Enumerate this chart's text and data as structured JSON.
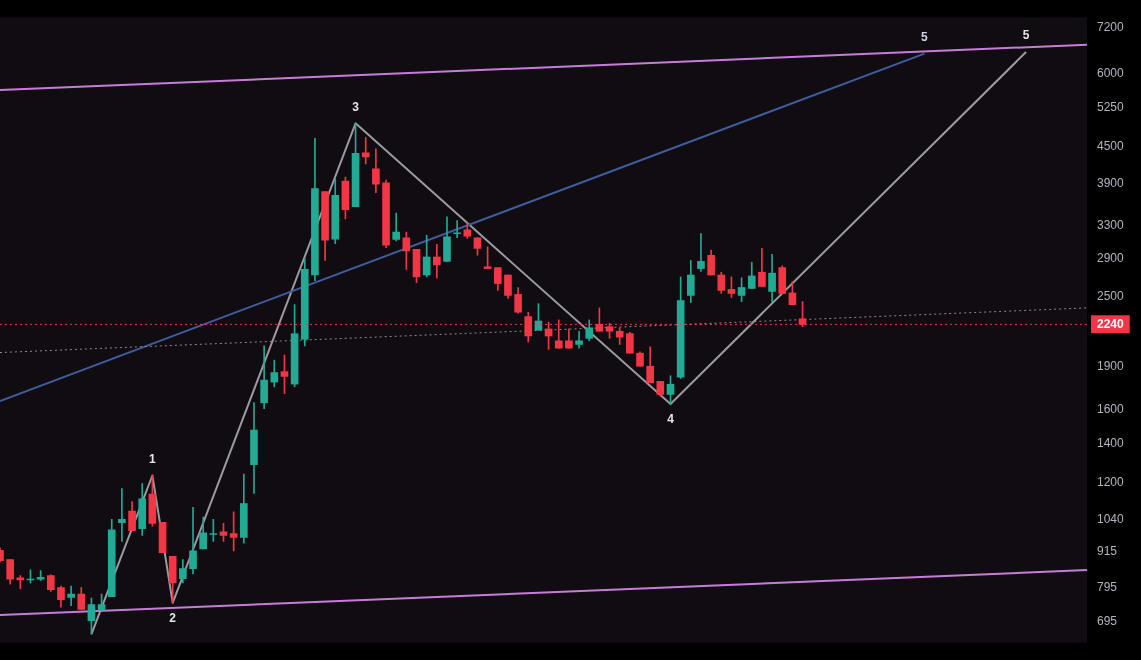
{
  "chart_data": {
    "type": "candlestick",
    "log": true,
    "legend": false,
    "tick_labels": "y",
    "annotations": [
      {
        "text": "1",
        "y": 1236
      },
      {
        "text": "2",
        "y": 749
      },
      {
        "text": "3",
        "y": 4940
      },
      {
        "text": "4",
        "y": 1637
      },
      {
        "text": "5",
        "y": 6540
      },
      {
        "text": "5",
        "y": 6500
      }
    ],
    "categories": [
      null,
      null,
      null,
      null,
      null,
      null,
      null,
      null,
      null,
      null,
      null,
      null,
      null,
      null,
      null,
      null,
      null,
      null,
      null,
      null,
      null,
      null,
      null,
      null,
      null,
      null,
      null,
      null,
      null,
      null,
      null,
      null,
      null,
      null,
      null,
      null,
      null,
      null,
      null,
      null,
      null,
      null,
      null,
      null,
      null,
      null,
      null,
      null,
      null,
      null,
      null,
      null,
      null,
      null,
      null,
      null,
      null,
      null,
      null,
      null,
      null,
      null,
      null,
      null,
      null,
      null,
      null,
      null,
      null,
      null,
      null,
      null,
      null,
      null,
      null,
      null,
      null,
      null,
      null,
      null,
      null,
      null,
      null,
      null,
      null,
      null,
      null,
      null,
      null,
      null,
      null,
      null,
      null,
      null,
      null,
      null,
      null,
      null,
      null,
      null,
      null,
      null,
      null,
      null,
      null,
      null,
      null,
      null
    ],
    "ohlc": [
      [
        921,
        930,
        880,
        884
      ],
      [
        888,
        888,
        806,
        822
      ],
      [
        826,
        834,
        792,
        820
      ],
      [
        820,
        853,
        810,
        822
      ],
      [
        822,
        850,
        818,
        828
      ],
      [
        834,
        836,
        783,
        789
      ],
      [
        795,
        800,
        736,
        758
      ],
      [
        765,
        800,
        741,
        775
      ],
      [
        775,
        795,
        730,
        730
      ],
      [
        698,
        763,
        662,
        744
      ],
      [
        728,
        775,
        728,
        744
      ],
      [
        767,
        1040,
        767,
        998
      ],
      [
        1027,
        1174,
        954,
        1040
      ],
      [
        1075,
        1116,
        995,
        995
      ],
      [
        1003,
        1198,
        976,
        1128
      ],
      [
        1149,
        1236,
        1013,
        1024
      ],
      [
        1028,
        1028,
        912,
        912
      ],
      [
        899,
        899,
        749,
        810
      ],
      [
        824,
        888,
        810,
        857
      ],
      [
        857,
        1091,
        839,
        919
      ],
      [
        926,
        1050,
        926,
        986
      ],
      [
        980,
        1040,
        954,
        984
      ],
      [
        990,
        1024,
        954,
        976
      ],
      [
        984,
        1071,
        919,
        969
      ],
      [
        969,
        1243,
        947,
        1107
      ],
      [
        1290,
        1646,
        1152,
        1478
      ],
      [
        1645,
        2058,
        1608,
        1799
      ],
      [
        1785,
        1946,
        1752,
        1853
      ],
      [
        1860,
        1985,
        1706,
        1825
      ],
      [
        1771,
        2421,
        1752,
        2159
      ],
      [
        2112,
        2908,
        2058,
        2782
      ],
      [
        2721,
        4655,
        2660,
        3821
      ],
      [
        3778,
        3778,
        2880,
        3120
      ],
      [
        3133,
        3966,
        3078,
        3722
      ],
      [
        3937,
        4000,
        3390,
        3516
      ],
      [
        3560,
        4940,
        3560,
        4390
      ],
      [
        4400,
        4670,
        4210,
        4330
      ],
      [
        4130,
        4470,
        3760,
        3890
      ],
      [
        3908,
        3950,
        3030,
        3060
      ],
      [
        3130,
        3470,
        3110,
        3220
      ],
      [
        3150,
        3220,
        2780,
        2990
      ],
      [
        3010,
        3010,
        2640,
        2700
      ],
      [
        2720,
        3180,
        2700,
        2920
      ],
      [
        2920,
        3070,
        2690,
        2830
      ],
      [
        2870,
        3420,
        2870,
        3160
      ],
      [
        3200,
        3370,
        3150,
        3210
      ],
      [
        3250,
        3340,
        3140,
        3170
      ],
      [
        3150,
        3150,
        2940,
        3020
      ],
      [
        2810,
        3040,
        2790,
        2790
      ],
      [
        2800,
        2800,
        2560,
        2630
      ],
      [
        2720,
        2720,
        2480,
        2510
      ],
      [
        2520,
        2590,
        2340,
        2350
      ],
      [
        2310,
        2350,
        2090,
        2140
      ],
      [
        2190,
        2430,
        2190,
        2270
      ],
      [
        2200,
        2260,
        2030,
        2140
      ],
      [
        2100,
        2280,
        2040,
        2040
      ],
      [
        2100,
        2200,
        2040,
        2040
      ],
      [
        2070,
        2180,
        2040,
        2100
      ],
      [
        2120,
        2280,
        2100,
        2210
      ],
      [
        2240,
        2390,
        2180,
        2180
      ],
      [
        2220,
        2250,
        2120,
        2180
      ],
      [
        2180,
        2210,
        2070,
        2130
      ],
      [
        2160,
        2170,
        2000,
        2000
      ],
      [
        2000,
        2010,
        1900,
        1900
      ],
      [
        1900,
        2050,
        1780,
        1780
      ],
      [
        1790,
        1790,
        1690,
        1700
      ],
      [
        1700,
        1830,
        1637,
        1770
      ],
      [
        1820,
        2700,
        1810,
        2460
      ],
      [
        2510,
        2880,
        2440,
        2720
      ],
      [
        2790,
        3200,
        2760,
        2870
      ],
      [
        2940,
        3000,
        2720,
        2720
      ],
      [
        2720,
        2750,
        2530,
        2560
      ],
      [
        2570,
        2700,
        2490,
        2530
      ],
      [
        2510,
        2690,
        2450,
        2590
      ],
      [
        2580,
        2860,
        2580,
        2710
      ],
      [
        2750,
        3020,
        2600,
        2600
      ],
      [
        2550,
        2950,
        2450,
        2740
      ],
      [
        2800,
        2820,
        2530,
        2530
      ],
      [
        2535,
        2650,
        2420,
        2420
      ],
      [
        2290,
        2450,
        2220,
        2240
      ],
      null,
      null,
      null,
      null,
      null,
      null,
      null,
      null,
      null,
      null,
      null,
      null,
      null,
      null,
      null,
      null,
      null,
      null,
      null,
      null,
      null,
      null,
      null,
      null,
      null,
      null,
      null,
      null
    ],
    "series": [
      {
        "type": "line",
        "color": "#c77dd8",
        "values": [
          5630,
          null,
          null,
          null,
          null,
          null,
          null,
          null,
          null,
          null,
          null,
          null,
          null,
          null,
          null,
          null,
          null,
          null,
          null,
          null,
          null,
          null,
          null,
          null,
          null,
          null,
          null,
          null,
          null,
          null,
          null,
          null,
          null,
          null,
          null,
          null,
          null,
          null,
          null,
          null,
          null,
          null,
          null,
          null,
          null,
          null,
          null,
          null,
          null,
          null,
          null,
          null,
          null,
          null,
          null,
          null,
          null,
          null,
          null,
          null,
          null,
          null,
          null,
          null,
          null,
          null,
          null,
          null,
          null,
          null,
          null,
          null,
          null,
          null,
          null,
          null,
          null,
          null,
          null,
          null,
          null,
          null,
          null,
          null,
          null,
          null,
          null,
          null,
          null,
          null,
          null,
          null,
          null,
          null,
          null,
          null,
          null,
          null,
          null,
          null,
          null,
          null,
          null,
          null,
          null,
          null,
          null,
          6730
        ]
      },
      {
        "type": "line",
        "color": "#c77dd8",
        "values": [
          714,
          null,
          null,
          null,
          null,
          null,
          null,
          null,
          null,
          null,
          null,
          null,
          null,
          null,
          null,
          null,
          null,
          null,
          null,
          null,
          null,
          null,
          null,
          null,
          null,
          null,
          null,
          null,
          null,
          null,
          null,
          null,
          null,
          null,
          null,
          null,
          null,
          null,
          null,
          null,
          null,
          null,
          null,
          null,
          null,
          null,
          null,
          null,
          null,
          null,
          null,
          null,
          null,
          null,
          null,
          null,
          null,
          null,
          null,
          null,
          null,
          null,
          null,
          null,
          null,
          null,
          null,
          null,
          null,
          null,
          null,
          null,
          null,
          null,
          null,
          null,
          null,
          null,
          null,
          null,
          null,
          null,
          null,
          null,
          null,
          null,
          null,
          null,
          null,
          null,
          null,
          null,
          null,
          null,
          null,
          null,
          null,
          null,
          null,
          null,
          null,
          null,
          null,
          null,
          null,
          null,
          null,
          852
        ]
      },
      {
        "type": "line",
        "color": "#8a8a90",
        "line_style": "dotted",
        "values": [
          2005,
          null,
          null,
          null,
          null,
          null,
          null,
          null,
          null,
          null,
          null,
          null,
          null,
          null,
          null,
          null,
          null,
          null,
          null,
          null,
          null,
          null,
          null,
          null,
          null,
          null,
          null,
          null,
          null,
          null,
          null,
          null,
          null,
          null,
          null,
          null,
          null,
          null,
          null,
          null,
          null,
          null,
          null,
          null,
          null,
          null,
          null,
          null,
          null,
          null,
          null,
          null,
          null,
          null,
          null,
          null,
          null,
          null,
          null,
          null,
          null,
          null,
          null,
          null,
          null,
          null,
          null,
          null,
          null,
          null,
          null,
          null,
          null,
          null,
          null,
          null,
          null,
          null,
          null,
          null,
          null,
          null,
          null,
          null,
          null,
          null,
          null,
          null,
          null,
          null,
          null,
          null,
          null,
          null,
          null,
          null,
          null,
          null,
          null,
          null,
          null,
          null,
          null,
          null,
          null,
          null,
          null,
          2390
        ]
      },
      {
        "type": "line",
        "color": "#3f5c9c",
        "values": [
          1657,
          null,
          null,
          null,
          null,
          null,
          null,
          null,
          null,
          null,
          null,
          null,
          null,
          null,
          null,
          null,
          null,
          null,
          null,
          null,
          null,
          null,
          null,
          null,
          null,
          null,
          null,
          null,
          null,
          null,
          null,
          null,
          null,
          null,
          null,
          null,
          null,
          null,
          null,
          null,
          null,
          null,
          null,
          null,
          null,
          null,
          null,
          null,
          null,
          null,
          null,
          null,
          null,
          null,
          null,
          null,
          null,
          null,
          null,
          null,
          null,
          null,
          null,
          null,
          null,
          null,
          null,
          null,
          null,
          null,
          null,
          null,
          null,
          null,
          null,
          null,
          null,
          null,
          null,
          null,
          null,
          null,
          null,
          null,
          null,
          null,
          null,
          null,
          null,
          null,
          null,
          6500,
          null,
          null,
          null,
          null,
          null,
          null,
          null,
          null,
          null,
          null,
          null,
          null,
          null,
          null,
          null,
          null
        ]
      },
      {
        "type": "line",
        "color": "#9a9aa0",
        "values": [
          null,
          null,
          null,
          null,
          null,
          null,
          null,
          null,
          null,
          662,
          null,
          null,
          null,
          null,
          null,
          1236,
          null,
          749,
          null,
          null,
          null,
          null,
          null,
          null,
          null,
          null,
          null,
          null,
          null,
          null,
          null,
          null,
          null,
          null,
          null,
          4940,
          null,
          null,
          null,
          null,
          null,
          null,
          null,
          null,
          null,
          null,
          null,
          null,
          null,
          null,
          null,
          null,
          null,
          null,
          null,
          null,
          null,
          null,
          null,
          null,
          null,
          null,
          null,
          null,
          null,
          null,
          1637,
          null,
          null,
          null,
          null,
          null,
          null,
          null,
          null,
          null,
          null,
          null,
          null,
          null,
          null,
          null,
          null,
          null,
          null,
          null,
          null,
          null,
          null,
          null,
          null,
          null,
          null,
          null,
          null,
          null,
          null,
          null,
          null,
          null,
          null,
          6540,
          null,
          null,
          null,
          null,
          null,
          null
        ]
      }
    ],
    "ylim": [
      640,
      7500
    ],
    "yticks": [
      695,
      795,
      915,
      1040,
      1200,
      1400,
      1600,
      1900,
      2500,
      2900,
      3300,
      3900,
      4500,
      5250,
      6000,
      7200
    ],
    "ref_lines": [
      {
        "axis": "y",
        "value": 2240,
        "label": "2240",
        "color": "#f23645",
        "line_style": "dotted"
      }
    ]
  }
}
